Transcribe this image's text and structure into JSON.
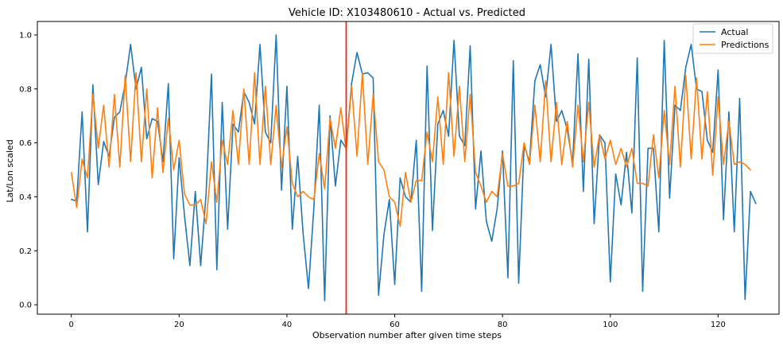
{
  "chart_data": {
    "type": "line",
    "title": "Vehicle ID: X103480610 - Actual vs. Predicted",
    "xlabel": "Observation number after given time steps",
    "ylabel": "Lat/Lon scaled",
    "xlim": [
      -6.3,
      131.3
    ],
    "ylim": [
      -0.035,
      1.05
    ],
    "xticks": [
      0,
      20,
      40,
      60,
      80,
      100,
      120
    ],
    "yticks": [
      0.0,
      0.2,
      0.4,
      0.6,
      0.8,
      1.0
    ],
    "xtick_labels": [
      "0",
      "20",
      "40",
      "60",
      "80",
      "100",
      "120"
    ],
    "ytick_labels": [
      "0.0",
      "0.2",
      "0.4",
      "0.6",
      "0.8",
      "1.0"
    ],
    "grid": false,
    "legend_position": "top-right",
    "vertical_marker": {
      "x": 51,
      "color": "#e8271c"
    },
    "series": [
      {
        "name": "Actual",
        "color": "#1f77b4",
        "values": [
          0.39,
          0.385,
          0.715,
          0.27,
          0.815,
          0.445,
          0.605,
          0.55,
          0.695,
          0.715,
          0.82,
          0.965,
          0.8,
          0.88,
          0.615,
          0.69,
          0.68,
          0.53,
          0.82,
          0.17,
          0.545,
          0.33,
          0.145,
          0.42,
          0.145,
          0.41,
          0.855,
          0.13,
          0.75,
          0.28,
          0.67,
          0.64,
          0.79,
          0.75,
          0.67,
          0.965,
          0.64,
          0.6,
          1.0,
          0.425,
          0.81,
          0.28,
          0.55,
          0.265,
          0.06,
          0.36,
          0.74,
          0.015,
          0.7,
          0.44,
          0.61,
          0.58,
          0.82,
          0.935,
          0.855,
          0.86,
          0.84,
          0.035,
          0.26,
          0.39,
          0.075,
          0.47,
          0.4,
          0.38,
          0.61,
          0.05,
          0.885,
          0.275,
          0.67,
          0.72,
          0.625,
          0.98,
          0.625,
          0.59,
          0.96,
          0.355,
          0.57,
          0.31,
          0.235,
          0.355,
          0.57,
          0.1,
          0.905,
          0.08,
          0.59,
          0.53,
          0.83,
          0.89,
          0.77,
          0.965,
          0.68,
          0.72,
          0.65,
          0.525,
          0.93,
          0.42,
          0.91,
          0.3,
          0.63,
          0.6,
          0.085,
          0.485,
          0.37,
          0.565,
          0.34,
          0.915,
          0.05,
          0.58,
          0.58,
          0.27,
          0.98,
          0.395,
          0.74,
          0.72,
          0.88,
          0.965,
          0.8,
          0.79,
          0.61,
          0.565,
          0.87,
          0.315,
          0.715,
          0.27,
          0.765,
          0.02,
          0.42,
          0.375
        ]
      },
      {
        "name": "Predictions",
        "color": "#ff7f0e",
        "values": [
          0.49,
          0.36,
          0.54,
          0.47,
          0.78,
          0.58,
          0.74,
          0.51,
          0.78,
          0.51,
          0.85,
          0.53,
          0.86,
          0.53,
          0.8,
          0.47,
          0.73,
          0.49,
          0.69,
          0.5,
          0.61,
          0.41,
          0.37,
          0.37,
          0.39,
          0.3,
          0.53,
          0.38,
          0.61,
          0.52,
          0.72,
          0.52,
          0.8,
          0.52,
          0.86,
          0.52,
          0.81,
          0.52,
          0.74,
          0.51,
          0.66,
          0.45,
          0.4,
          0.42,
          0.4,
          0.39,
          0.56,
          0.43,
          0.69,
          0.58,
          0.73,
          0.57,
          0.81,
          0.55,
          0.86,
          0.52,
          0.78,
          0.53,
          0.5,
          0.4,
          0.38,
          0.29,
          0.49,
          0.38,
          0.46,
          0.46,
          0.64,
          0.53,
          0.77,
          0.52,
          0.86,
          0.55,
          0.81,
          0.53,
          0.78,
          0.49,
          0.44,
          0.38,
          0.42,
          0.4,
          0.56,
          0.44,
          0.44,
          0.45,
          0.6,
          0.52,
          0.74,
          0.53,
          0.83,
          0.53,
          0.75,
          0.52,
          0.68,
          0.51,
          0.74,
          0.53,
          0.75,
          0.51,
          0.63,
          0.54,
          0.61,
          0.52,
          0.58,
          0.51,
          0.58,
          0.45,
          0.45,
          0.44,
          0.63,
          0.47,
          0.72,
          0.52,
          0.81,
          0.51,
          0.85,
          0.54,
          0.84,
          0.54,
          0.79,
          0.48,
          0.77,
          0.52,
          0.68,
          0.52,
          0.53,
          0.52,
          0.5
        ]
      }
    ]
  }
}
